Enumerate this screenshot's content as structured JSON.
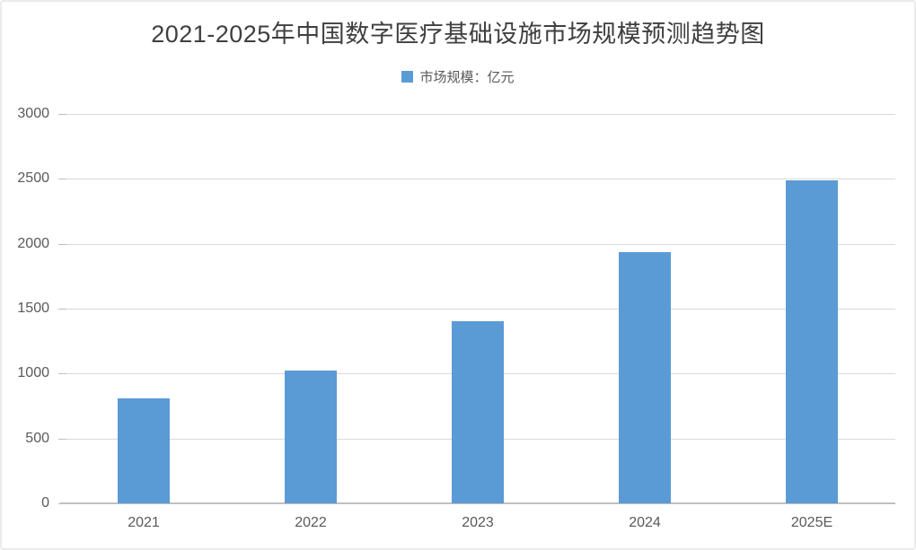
{
  "page": {
    "background": "#ffffff",
    "border_color": "#ebebeb"
  },
  "chart": {
    "title": "2021-2025年中国数字医疗基础设施市场规模预测趋势图",
    "title_color": "#3f3f3f",
    "legend": {
      "label": "市场规模：亿元",
      "marker_color": "#5b9bd5"
    }
  },
  "chart_data": {
    "type": "bar",
    "title": "2021-2025年中国数字医疗基础设施市场规模预测趋势图",
    "categories": [
      "2021",
      "2022",
      "2023",
      "2024",
      "2025E"
    ],
    "series": [
      {
        "name": "市场规模：亿元",
        "values": [
          810,
          1020,
          1400,
          1935,
          2490
        ]
      }
    ],
    "xlabel": "",
    "ylabel": "",
    "ylim": [
      0,
      3000
    ],
    "yticks": [
      0,
      500,
      1000,
      1500,
      2000,
      2500,
      3000
    ],
    "bar_color": "#5b9bd5",
    "grid": true,
    "gridline_color": "#d9d9d9",
    "axis_line_color": "#c0c0c0",
    "tick_label_color": "#595959",
    "legend_position": "top-center"
  }
}
